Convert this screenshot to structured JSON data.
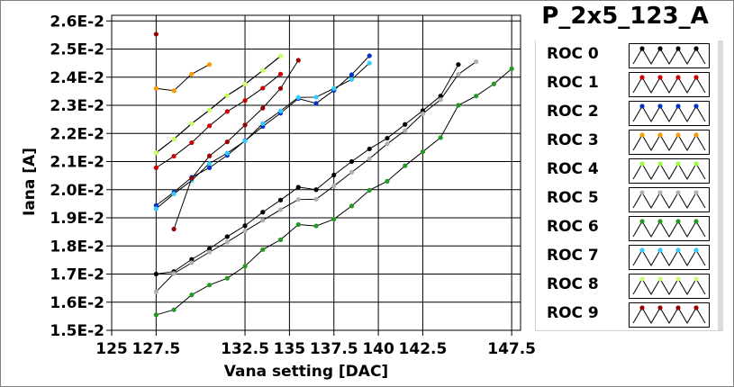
{
  "chart_data": {
    "type": "line",
    "title": "P_2x5_123_A",
    "xlabel": "Vana setting [DAC]",
    "ylabel": "Iana [A]",
    "xlim": [
      125,
      148
    ],
    "ylim": [
      0.015,
      0.0262
    ],
    "x_ticks": [
      125,
      127.5,
      132.5,
      135,
      137.5,
      140,
      142.5,
      147.5
    ],
    "x_tick_labels": [
      "125",
      "127.5",
      "132.5",
      "135",
      "137.5",
      "140",
      "142.5",
      "147.5"
    ],
    "y_ticks": [
      0.015,
      0.016,
      0.017,
      0.018,
      0.019,
      0.02,
      0.021,
      0.022,
      0.023,
      0.024,
      0.025,
      0.026
    ],
    "y_tick_labels": [
      "1.5E-2",
      "1.6E-2",
      "1.7E-2",
      "1.8E-2",
      "1.9E-2",
      "2.0E-2",
      "2.1E-2",
      "2.2E-2",
      "2.3E-2",
      "2.4E-2",
      "2.5E-2",
      "2.6E-2"
    ],
    "grid": true,
    "legend_position": "right",
    "series": [
      {
        "name": "ROC 0",
        "color": "#000000",
        "x": [
          127.5,
          128.5,
          129.5,
          130.5,
          131.5,
          132.5,
          133.5,
          134.5,
          135.5,
          136.5,
          137.5,
          138.5,
          139.5,
          140.5,
          141.5,
          142.5,
          143.5,
          144.5
        ],
        "y": [
          0.017,
          0.01709,
          0.01752,
          0.0179,
          0.01833,
          0.01872,
          0.0192,
          0.01963,
          0.02009,
          0.02,
          0.02052,
          0.021,
          0.02145,
          0.02183,
          0.02232,
          0.02281,
          0.02333,
          0.02445
        ]
      },
      {
        "name": "ROC 1",
        "color": "#cc0000",
        "x": [
          127.5,
          128.5,
          129.5,
          130.5,
          131.5,
          132.5,
          133.5,
          134.5
        ],
        "y": [
          0.02078,
          0.02119,
          0.02167,
          0.02227,
          0.02278,
          0.02317,
          0.02361,
          0.02411
        ]
      },
      {
        "name": "ROC 2",
        "color": "#0033cc",
        "x": [
          127.5,
          128.5,
          129.5,
          130.5,
          131.5,
          132.5,
          133.5,
          134.5,
          135.5,
          136.5,
          137.5,
          138.5,
          139.5
        ],
        "y": [
          0.01944,
          0.01991,
          0.02044,
          0.02078,
          0.02122,
          0.02174,
          0.02225,
          0.02272,
          0.02324,
          0.02307,
          0.02353,
          0.02409,
          0.02476
        ]
      },
      {
        "name": "ROC 3",
        "color": "#ff9900",
        "x": [
          127.5,
          128.5,
          129.5,
          130.5
        ],
        "y": [
          0.0236,
          0.02352,
          0.02411,
          0.02445
        ]
      },
      {
        "name": "ROC 4",
        "color": "#99ff33",
        "x": [
          127.5,
          128.5,
          129.5,
          130.5,
          131.5,
          132.5,
          133.5,
          134.5
        ],
        "y": [
          0.02131,
          0.0218,
          0.02235,
          0.02283,
          0.02335,
          0.02375,
          0.02424,
          0.02475
        ]
      },
      {
        "name": "ROC 5",
        "color": "#b0b0b0",
        "x": [
          127.5,
          128.5,
          129.5,
          130.5,
          131.5,
          132.5,
          133.5,
          134.5,
          135.5,
          136.5,
          137.5,
          138.5,
          139.5,
          140.5,
          141.5,
          142.5,
          143.5,
          144.5,
          145.5
        ],
        "y": [
          0.01637,
          0.01702,
          0.0174,
          0.01778,
          0.01814,
          0.01853,
          0.01891,
          0.01929,
          0.01965,
          0.01966,
          0.02013,
          0.02062,
          0.0211,
          0.02163,
          0.0221,
          0.0227,
          0.0232,
          0.0241,
          0.02455
        ]
      },
      {
        "name": "ROC 6",
        "color": "#229922",
        "x": [
          127.5,
          128.5,
          129.5,
          130.5,
          131.5,
          132.5,
          133.5,
          134.5,
          135.5,
          136.5,
          137.5,
          138.5,
          139.5,
          140.5,
          141.5,
          142.5,
          143.5,
          144.5,
          145.5,
          146.5,
          147.5
        ],
        "y": [
          0.01555,
          0.01573,
          0.01626,
          0.01661,
          0.01685,
          0.01728,
          0.01787,
          0.01822,
          0.01876,
          0.01871,
          0.01895,
          0.01942,
          0.01998,
          0.0203,
          0.02085,
          0.02135,
          0.02185,
          0.023,
          0.02333,
          0.02376,
          0.0243
        ]
      },
      {
        "name": "ROC 7",
        "color": "#33ccff",
        "x": [
          127.5,
          128.5,
          129.5,
          130.5,
          131.5,
          132.5,
          133.5,
          134.5,
          135.5,
          136.5,
          137.5,
          138.5,
          139.5
        ],
        "y": [
          0.01932,
          0.01985,
          0.02033,
          0.02093,
          0.0213,
          0.02173,
          0.02235,
          0.0228,
          0.02328,
          0.02329,
          0.0236,
          0.02392,
          0.0245
        ]
      },
      {
        "name": "ROC 8",
        "color": "#ccff66",
        "x": [
          127.5,
          128.5,
          129.5,
          130.5,
          131.5,
          132.5,
          133.5,
          134.5
        ],
        "y": [
          0.02131,
          0.0218,
          0.02235,
          0.02283,
          0.02335,
          0.02375,
          0.02424,
          0.02475
        ]
      },
      {
        "name": "ROC 9",
        "color": "#990000",
        "x": [
          127.5,
          128.5,
          129.5,
          130.5,
          131.5,
          132.5,
          133.5,
          134.5,
          135.5
        ],
        "y": [
          0.02553,
          0.0186,
          0.0204,
          0.0212,
          0.0217,
          0.0223,
          0.0229,
          0.0236,
          0.0246
        ]
      }
    ]
  }
}
